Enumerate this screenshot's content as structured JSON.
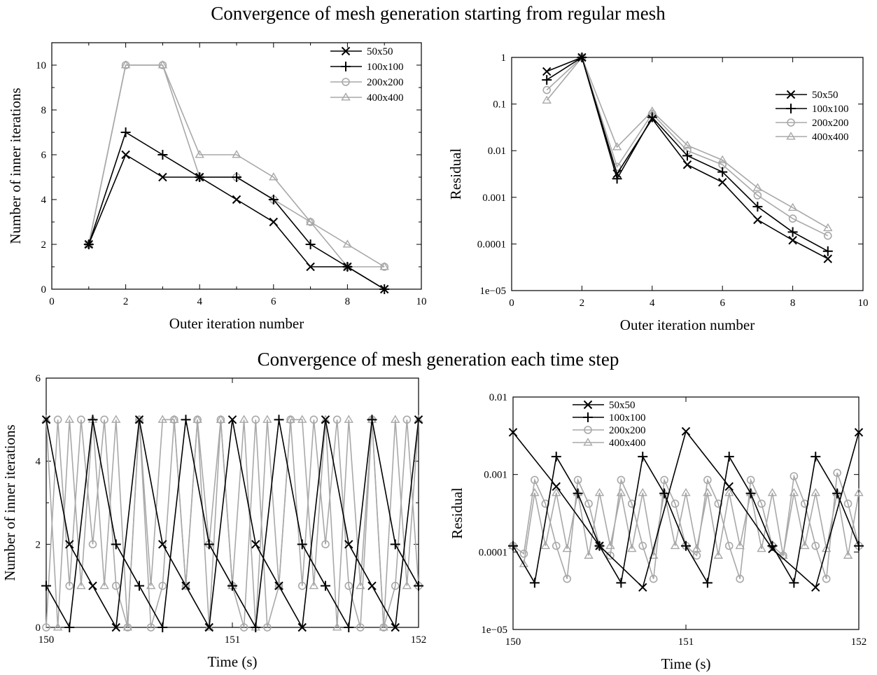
{
  "top_title": "Convergence of mesh generation starting from regular mesh",
  "bottom_title": "Convergence of mesh generation each time step",
  "colors": {
    "dark": "#000000",
    "light": "#a8a8a8"
  },
  "chart_data": [
    {
      "id": "tl",
      "type": "line",
      "xlabel": "Outer iteration number",
      "ylabel": "Number of inner iterations",
      "xlim": [
        0,
        10
      ],
      "ylim": [
        0,
        11
      ],
      "yscale": "linear",
      "xticks": [
        0,
        2,
        4,
        6,
        8,
        10
      ],
      "yticks": [
        0,
        2,
        4,
        6,
        8,
        10
      ],
      "ytick_labels": [
        "0",
        "2",
        "4",
        "6",
        "8",
        "10"
      ],
      "legend_position": "top-right",
      "series": [
        {
          "name": "50x50",
          "marker": "x",
          "color": "dark",
          "x": [
            1,
            2,
            3,
            4,
            5,
            6,
            7,
            8,
            9
          ],
          "y": [
            2,
            6,
            5,
            5,
            4,
            3,
            1,
            1,
            0
          ]
        },
        {
          "name": "100x100",
          "marker": "plus",
          "color": "dark",
          "x": [
            1,
            2,
            3,
            4,
            5,
            6,
            7,
            8,
            9
          ],
          "y": [
            2,
            7,
            6,
            5,
            5,
            4,
            2,
            1,
            0
          ]
        },
        {
          "name": "200x200",
          "marker": "circle",
          "color": "light",
          "x": [
            1,
            2,
            3,
            4,
            5,
            6,
            7,
            8,
            9
          ],
          "y": [
            2,
            10,
            10,
            5,
            5,
            4,
            3,
            1,
            1
          ]
        },
        {
          "name": "400x400",
          "marker": "triangle",
          "color": "light",
          "x": [
            1,
            2,
            3,
            4,
            5,
            6,
            7,
            8,
            9
          ],
          "y": [
            2,
            10,
            10,
            6,
            6,
            5,
            3,
            2,
            1
          ]
        }
      ]
    },
    {
      "id": "tr",
      "type": "line",
      "xlabel": "Outer iteration number",
      "ylabel": "Residual",
      "xlim": [
        0,
        10
      ],
      "ylim": [
        1e-05,
        1
      ],
      "yscale": "log",
      "xticks": [
        0,
        2,
        4,
        6,
        8,
        10
      ],
      "yticks": [
        1e-05,
        0.0001,
        0.001,
        0.01,
        0.1,
        1
      ],
      "ytick_labels": [
        "1e−05",
        "0.0001",
        "0.001",
        "0.01",
        "0.1",
        "1"
      ],
      "legend_position": "right",
      "series": [
        {
          "name": "50x50",
          "marker": "x",
          "color": "dark",
          "x": [
            1,
            2,
            3,
            4,
            5,
            6,
            7,
            8,
            9
          ],
          "y": [
            0.5,
            1,
            0.0032,
            0.048,
            0.005,
            0.0021,
            0.00033,
            0.00012,
            4.8e-05
          ]
        },
        {
          "name": "100x100",
          "marker": "plus",
          "color": "dark",
          "x": [
            1,
            2,
            3,
            4,
            5,
            6,
            7,
            8,
            9
          ],
          "y": [
            0.33,
            1,
            0.0025,
            0.052,
            0.0078,
            0.0035,
            0.00063,
            0.00018,
            7e-05
          ]
        },
        {
          "name": "200x200",
          "marker": "circle",
          "color": "light",
          "x": [
            1,
            2,
            3,
            4,
            5,
            6,
            7,
            8,
            9
          ],
          "y": [
            0.2,
            1,
            0.0045,
            0.062,
            0.01,
            0.005,
            0.0011,
            0.00035,
            0.00015
          ]
        },
        {
          "name": "400x400",
          "marker": "triangle",
          "color": "light",
          "x": [
            1,
            2,
            3,
            4,
            5,
            6,
            7,
            8,
            9
          ],
          "y": [
            0.12,
            1,
            0.012,
            0.07,
            0.013,
            0.0063,
            0.0016,
            0.0006,
            0.00022
          ]
        }
      ]
    },
    {
      "id": "bl",
      "type": "line",
      "xlabel": "Time (s)",
      "ylabel": "Number of inner iterations",
      "xlim": [
        150,
        152
      ],
      "ylim": [
        0,
        6
      ],
      "yscale": "linear",
      "xticks": [
        150,
        151,
        152
      ],
      "yticks": [
        0,
        2,
        4,
        6
      ],
      "ytick_labels": [
        "0",
        "2",
        "4",
        "6"
      ],
      "legend_position": "none",
      "series": [
        {
          "name": "50x50",
          "marker": "x",
          "color": "dark",
          "dt": 0.125,
          "x0": 150,
          "y": [
            5,
            2,
            1,
            0,
            5,
            2,
            1,
            0,
            5,
            2,
            1,
            0,
            5,
            2,
            1,
            0,
            5
          ]
        },
        {
          "name": "100x100",
          "marker": "plus",
          "color": "dark",
          "dt": 0.125,
          "x0": 150,
          "y": [
            1,
            0,
            5,
            2,
            1,
            0,
            5,
            2,
            1,
            0,
            5,
            2,
            1,
            0,
            5,
            2,
            1
          ]
        },
        {
          "name": "200x200",
          "marker": "circle",
          "color": "light",
          "dt": 0.0625,
          "x0": 150,
          "y": [
            0,
            5,
            1,
            5,
            2,
            5,
            1,
            0,
            5,
            0,
            1,
            5,
            1,
            5,
            2,
            5,
            1,
            0,
            5,
            0,
            1,
            5,
            1,
            5,
            2,
            5,
            1,
            0,
            5,
            0,
            1,
            5,
            1
          ]
        },
        {
          "name": "400x400",
          "marker": "triangle",
          "color": "light",
          "dt": 0.0625,
          "x0": 150,
          "y": [
            5,
            0,
            5,
            1,
            5,
            1,
            5,
            0,
            5,
            1,
            5,
            5,
            1,
            5,
            0,
            5,
            1,
            5,
            0,
            5,
            1,
            5,
            5,
            1,
            5,
            0,
            5,
            1,
            5,
            0,
            5,
            1,
            5
          ]
        }
      ]
    },
    {
      "id": "br",
      "type": "line",
      "xlabel": "Time (s)",
      "ylabel": "Residual",
      "xlim": [
        150,
        152
      ],
      "ylim": [
        1e-05,
        0.01
      ],
      "yscale": "log",
      "xticks": [
        150,
        151,
        152
      ],
      "yticks": [
        1e-05,
        0.0001,
        0.001,
        0.01
      ],
      "ytick_labels": [
        "1e−05",
        "0.0001",
        "0.001",
        "0.01"
      ],
      "legend_position": "top-left",
      "series": [
        {
          "name": "50x50",
          "marker": "x",
          "color": "dark",
          "dt": 0.25,
          "x0": 150,
          "y": [
            0.0035,
            0.0007,
            0.00012,
            3.5e-05,
            0.0036,
            0.0007,
            0.00011,
            3.5e-05,
            0.0035
          ]
        },
        {
          "name": "100x100",
          "marker": "plus",
          "color": "dark",
          "dt": 0.125,
          "x0": 150,
          "y": [
            0.00012,
            4e-05,
            0.0017,
            0.00057,
            0.00012,
            4e-05,
            0.0017,
            0.00057,
            0.00012,
            4e-05,
            0.0017,
            0.00057,
            0.00012,
            4e-05,
            0.0017,
            0.00057,
            0.00012
          ]
        },
        {
          "name": "200x200",
          "marker": "circle",
          "color": "light",
          "dt": 0.0625,
          "x0": 150,
          "y": [
            0.00012,
            9.5e-05,
            0.00085,
            0.00042,
            0.00012,
            4.5e-05,
            0.00085,
            0.00042,
            0.00012,
            9e-05,
            0.00085,
            0.00042,
            0.00012,
            4.5e-05,
            0.00085,
            0.00042,
            0.00012,
            9e-05,
            0.00085,
            0.00042,
            0.00012,
            4.5e-05,
            0.00085,
            0.00042,
            0.00012,
            9e-05,
            0.00095,
            0.00042,
            0.00012,
            4.5e-05,
            0.00105,
            0.00042,
            0.00012
          ]
        },
        {
          "name": "400x400",
          "marker": "triangle",
          "color": "light",
          "dt": 0.0625,
          "x0": 150,
          "y": [
            0.00012,
            7e-05,
            0.00058,
            0.00012,
            0.00058,
            0.00011,
            0.00058,
            9e-05,
            0.00058,
            0.00012,
            0.00058,
            0.00011,
            0.00058,
            9e-05,
            0.00058,
            0.00012,
            0.00058,
            0.00011,
            0.00058,
            9e-05,
            0.00058,
            0.00012,
            0.00058,
            0.00011,
            0.00058,
            9e-05,
            0.00058,
            0.00012,
            0.00058,
            0.00011,
            0.00058,
            9e-05,
            0.00058
          ]
        }
      ]
    }
  ]
}
